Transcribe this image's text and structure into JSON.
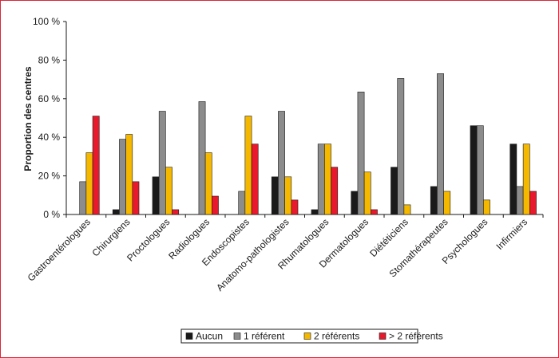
{
  "chart_data": {
    "type": "bar",
    "ylabel": "Proportion des centres",
    "ylim": [
      0,
      100
    ],
    "yticks": [
      "0 %",
      "20 %",
      "40 %",
      "60 %",
      "80 %",
      "100 %"
    ],
    "grid": false,
    "legend_position": "bottom",
    "categories": [
      "Gastroentérologues",
      "Chirurgiens",
      "Proctologues",
      "Radiologues",
      "Endoscopistes",
      "Anatomo-pathologistes",
      "Rhumatologues",
      "Dermatologues",
      "Diététiciens",
      "Stomathérapeutes",
      "Psychologues",
      "Infirmiers"
    ],
    "series": [
      {
        "name": "Aucun",
        "color": "#1a1a1a",
        "values": [
          0,
          2.5,
          19.5,
          0,
          0,
          19.5,
          2.5,
          12,
          24.5,
          14.5,
          46,
          36.5
        ]
      },
      {
        "name": "1 référent",
        "color": "#8c8c8c",
        "values": [
          17,
          39,
          53.5,
          58.5,
          12,
          53.5,
          36.5,
          63.5,
          70.5,
          73,
          46,
          14.5
        ]
      },
      {
        "name": "2 référents",
        "color": "#f5b800",
        "values": [
          32,
          41.5,
          24.5,
          32,
          51,
          19.5,
          36.5,
          22,
          5,
          12,
          7.5,
          36.5
        ]
      },
      {
        "name": "> 2 référents",
        "color": "#e8192c",
        "values": [
          51,
          17,
          2.5,
          9.5,
          36.5,
          7.5,
          24.5,
          2.5,
          0,
          0,
          0,
          12
        ]
      }
    ]
  }
}
